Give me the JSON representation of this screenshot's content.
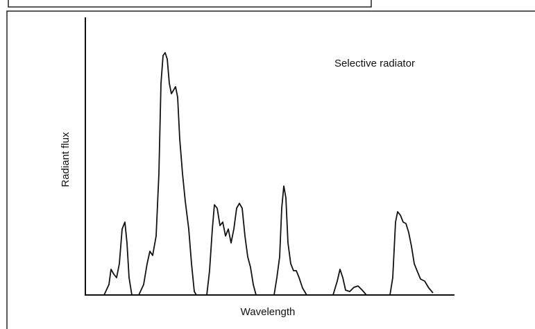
{
  "chart_data": {
    "type": "line",
    "annotation": "Selective radiator",
    "xlabel": "Wavelength",
    "ylabel": "Radiant flux",
    "xlim": [
      0,
      532
    ],
    "ylim": [
      0,
      400
    ],
    "series": [
      {
        "color": "#111111",
        "x": [
          27,
          34,
          37,
          41,
          45,
          49,
          53,
          57,
          60,
          63,
          67,
          77,
          84,
          89,
          93,
          97,
          102,
          106,
          109,
          112,
          115,
          118,
          121,
          124,
          127,
          130,
          133,
          136,
          140,
          144,
          149,
          153,
          157,
          160,
          175,
          179,
          183,
          186,
          190,
          194,
          198,
          202,
          206,
          210,
          214,
          218,
          222,
          226,
          230,
          234,
          238,
          242,
          246,
          272,
          276,
          280,
          283,
          286,
          289,
          292,
          296,
          300,
          304,
          308,
          313,
          319,
          357,
          363,
          367,
          371,
          375,
          381,
          387,
          393,
          399,
          405,
          439,
          443,
          447,
          450,
          454,
          458,
          462,
          466,
          470,
          474,
          478,
          483,
          489,
          495,
          501
        ],
        "values": [
          0,
          15,
          37,
          30,
          25,
          45,
          95,
          105,
          75,
          25,
          0,
          0,
          15,
          45,
          63,
          57,
          85,
          175,
          305,
          345,
          349,
          340,
          305,
          290,
          295,
          300,
          285,
          225,
          175,
          135,
          95,
          45,
          5,
          0,
          0,
          35,
          95,
          130,
          125,
          100,
          105,
          85,
          95,
          75,
          95,
          125,
          132,
          125,
          85,
          55,
          40,
          15,
          0,
          0,
          25,
          55,
          125,
          157,
          140,
          75,
          45,
          35,
          35,
          25,
          10,
          0,
          0,
          20,
          37,
          25,
          7,
          5,
          11,
          13,
          7,
          0,
          0,
          25,
          105,
          120,
          115,
          105,
          103,
          90,
          70,
          45,
          35,
          23,
          20,
          10,
          3
        ]
      }
    ]
  }
}
